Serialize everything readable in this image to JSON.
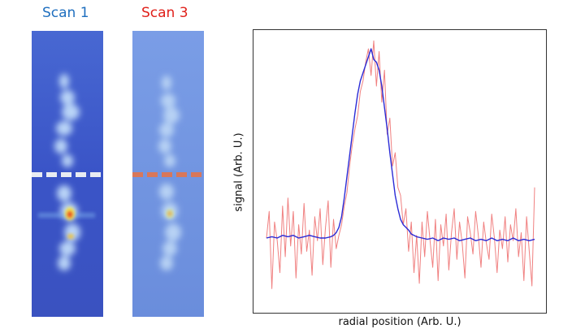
{
  "scans": [
    {
      "title": "Scan 1",
      "title_color": "#1f6fbf",
      "background_color": "#3a54c7",
      "dashed_line_color": "#e8ecf2",
      "colormap": "jet"
    },
    {
      "title": "Scan 3",
      "title_color": "#e0201a",
      "background_color": "#6f92e0",
      "dashed_line_color": "#d8775a",
      "colormap": "jet"
    }
  ],
  "chart_data": {
    "type": "line",
    "title": "",
    "xlabel": "radial position (Arb. U.)",
    "ylabel": "signal (Arb. U.)",
    "x_ticks": "none",
    "y_ticks": "none",
    "grid": false,
    "xlim": [
      0,
      1
    ],
    "ylim": [
      0,
      1
    ],
    "series": [
      {
        "color": "#f08080",
        "x": [
          0.0,
          0.01,
          0.02,
          0.03,
          0.04,
          0.05,
          0.06,
          0.07,
          0.08,
          0.09,
          0.1,
          0.11,
          0.12,
          0.13,
          0.14,
          0.15,
          0.16,
          0.17,
          0.18,
          0.19,
          0.2,
          0.21,
          0.22,
          0.23,
          0.24,
          0.25,
          0.26,
          0.27,
          0.28,
          0.29,
          0.3,
          0.31,
          0.32,
          0.33,
          0.34,
          0.35,
          0.36,
          0.37,
          0.38,
          0.39,
          0.4,
          0.41,
          0.42,
          0.43,
          0.44,
          0.45,
          0.46,
          0.47,
          0.48,
          0.49,
          0.5,
          0.51,
          0.52,
          0.53,
          0.54,
          0.55,
          0.56,
          0.57,
          0.58,
          0.59,
          0.6,
          0.61,
          0.62,
          0.63,
          0.64,
          0.65,
          0.66,
          0.67,
          0.68,
          0.69,
          0.7,
          0.71,
          0.72,
          0.73,
          0.74,
          0.75,
          0.76,
          0.77,
          0.78,
          0.79,
          0.8,
          0.81,
          0.82,
          0.83,
          0.84,
          0.85,
          0.86,
          0.87,
          0.88,
          0.89,
          0.9,
          0.91,
          0.92,
          0.93,
          0.94,
          0.95,
          0.96,
          0.97,
          0.98,
          0.99,
          1.0
        ],
        "values": [
          0.25,
          0.35,
          0.06,
          0.31,
          0.24,
          0.12,
          0.37,
          0.18,
          0.4,
          0.22,
          0.35,
          0.1,
          0.3,
          0.19,
          0.38,
          0.2,
          0.28,
          0.11,
          0.33,
          0.24,
          0.36,
          0.15,
          0.29,
          0.39,
          0.14,
          0.32,
          0.21,
          0.26,
          0.3,
          0.37,
          0.42,
          0.52,
          0.6,
          0.66,
          0.71,
          0.8,
          0.84,
          0.91,
          0.96,
          0.86,
          0.99,
          0.82,
          0.95,
          0.76,
          0.88,
          0.64,
          0.7,
          0.52,
          0.57,
          0.44,
          0.41,
          0.3,
          0.36,
          0.2,
          0.31,
          0.12,
          0.26,
          0.08,
          0.31,
          0.18,
          0.35,
          0.24,
          0.14,
          0.32,
          0.09,
          0.3,
          0.22,
          0.34,
          0.13,
          0.27,
          0.36,
          0.17,
          0.31,
          0.23,
          0.1,
          0.33,
          0.27,
          0.19,
          0.35,
          0.26,
          0.14,
          0.31,
          0.23,
          0.17,
          0.34,
          0.25,
          0.12,
          0.28,
          0.21,
          0.33,
          0.16,
          0.3,
          0.24,
          0.36,
          0.18,
          0.27,
          0.09,
          0.33,
          0.2,
          0.07,
          0.44
        ]
      },
      {
        "color": "#2b2bd6",
        "x": [
          0.0,
          0.02,
          0.04,
          0.06,
          0.08,
          0.1,
          0.12,
          0.14,
          0.16,
          0.18,
          0.2,
          0.22,
          0.24,
          0.25,
          0.26,
          0.27,
          0.28,
          0.29,
          0.3,
          0.31,
          0.32,
          0.33,
          0.34,
          0.35,
          0.36,
          0.37,
          0.38,
          0.39,
          0.4,
          0.41,
          0.42,
          0.43,
          0.44,
          0.45,
          0.46,
          0.47,
          0.48,
          0.49,
          0.5,
          0.51,
          0.52,
          0.53,
          0.54,
          0.55,
          0.56,
          0.58,
          0.6,
          0.62,
          0.64,
          0.66,
          0.68,
          0.7,
          0.72,
          0.74,
          0.76,
          0.78,
          0.8,
          0.82,
          0.84,
          0.86,
          0.88,
          0.9,
          0.92,
          0.94,
          0.96,
          0.98,
          1.0
        ],
        "values": [
          0.25,
          0.255,
          0.25,
          0.26,
          0.255,
          0.26,
          0.25,
          0.255,
          0.26,
          0.255,
          0.25,
          0.25,
          0.255,
          0.26,
          0.27,
          0.29,
          0.33,
          0.4,
          0.48,
          0.56,
          0.64,
          0.72,
          0.79,
          0.84,
          0.87,
          0.9,
          0.93,
          0.96,
          0.92,
          0.91,
          0.88,
          0.82,
          0.74,
          0.66,
          0.57,
          0.49,
          0.41,
          0.36,
          0.32,
          0.3,
          0.29,
          0.28,
          0.265,
          0.26,
          0.255,
          0.25,
          0.245,
          0.25,
          0.24,
          0.25,
          0.245,
          0.25,
          0.24,
          0.245,
          0.25,
          0.24,
          0.245,
          0.24,
          0.25,
          0.24,
          0.245,
          0.24,
          0.25,
          0.24,
          0.245,
          0.24,
          0.245
        ]
      }
    ]
  }
}
